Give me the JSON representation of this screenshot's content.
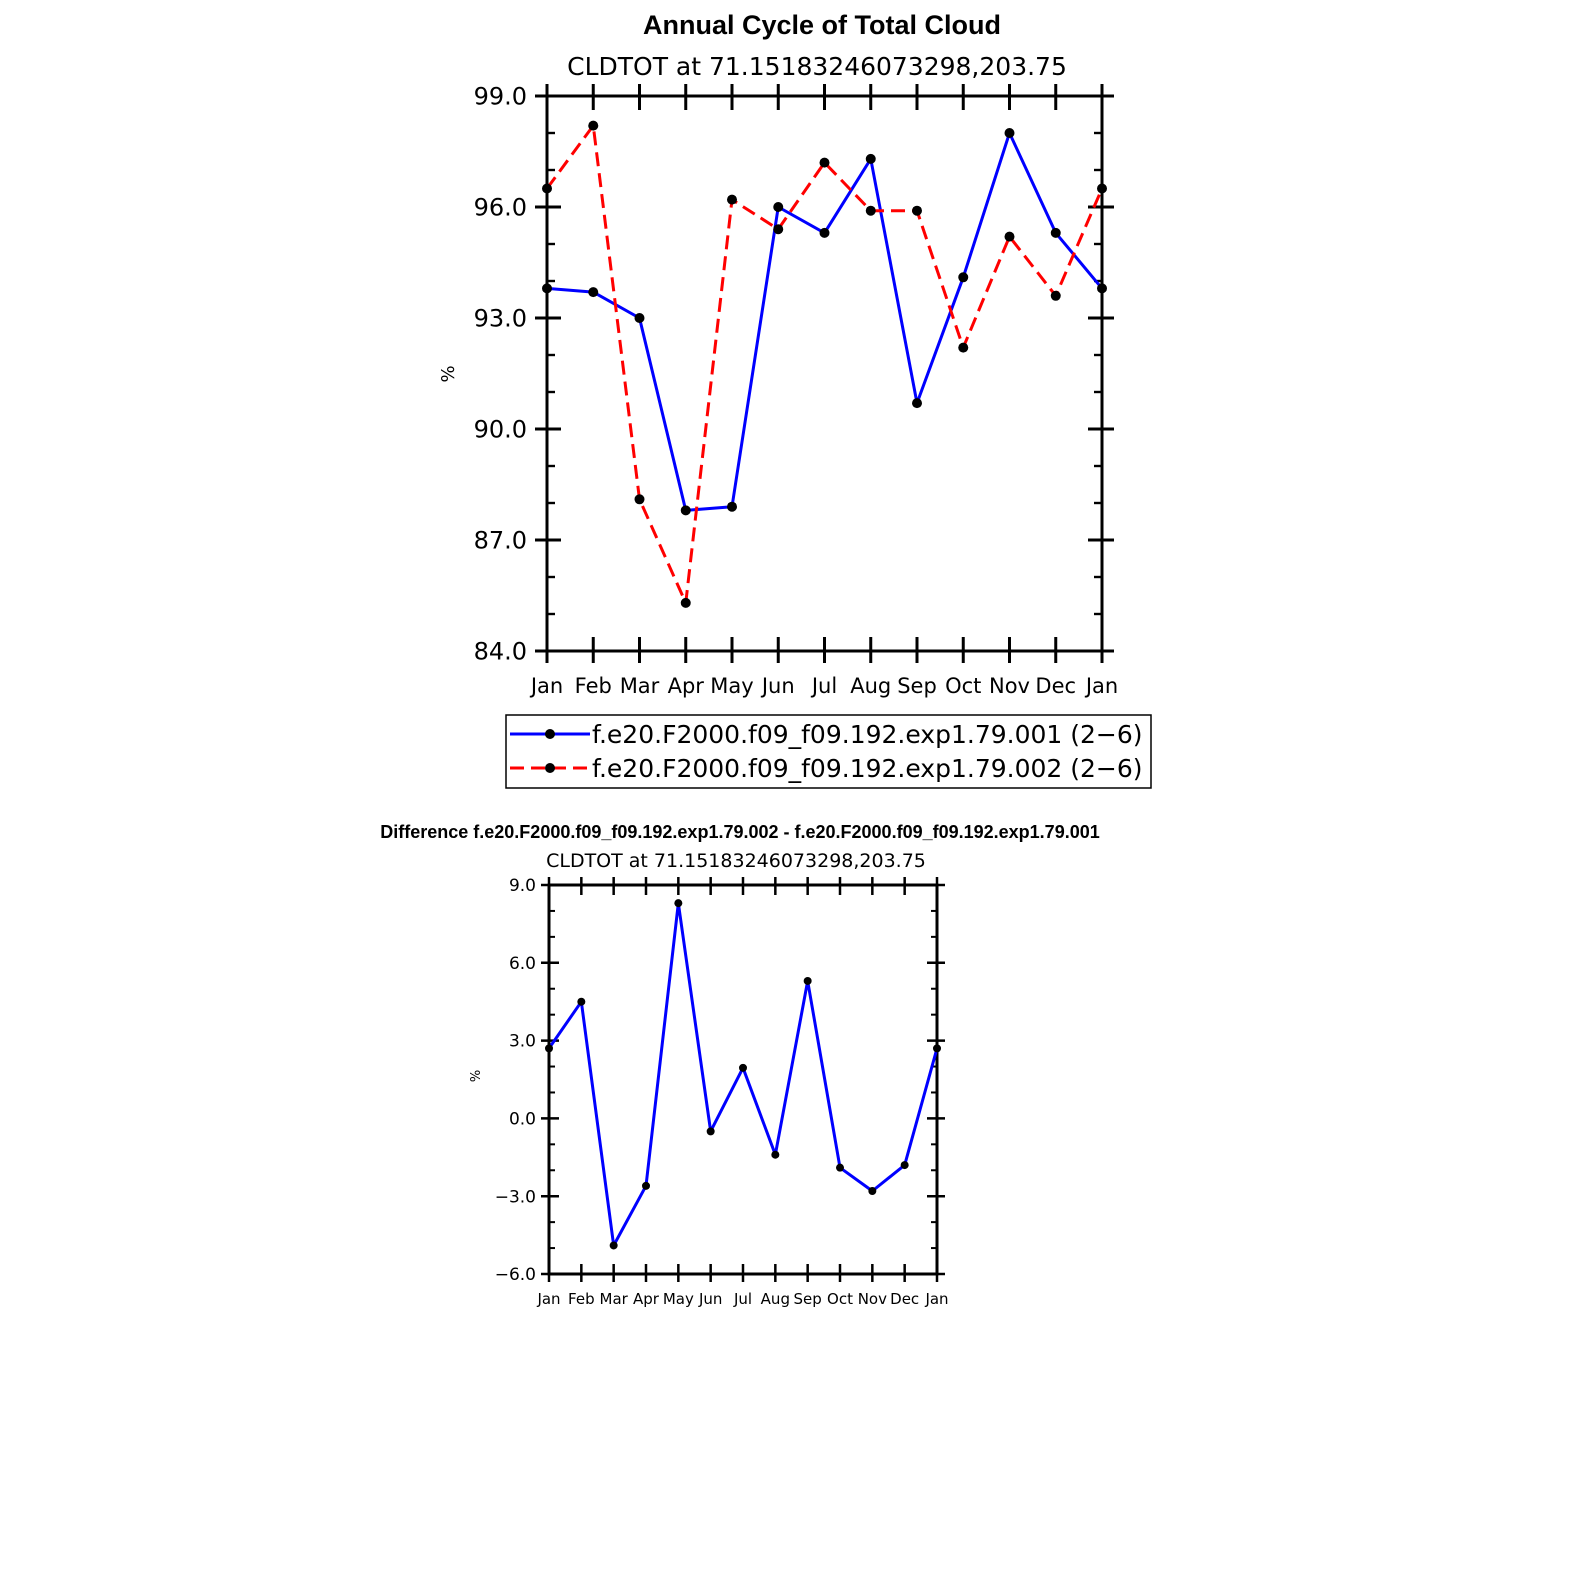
{
  "chart_data": [
    {
      "type": "line",
      "title": "Annual Cycle of Total Cloud",
      "subtitle": "CLDTOT at 71.15183246073298,203.75",
      "ylabel": "%",
      "xlabel": "",
      "categories": [
        "Jan",
        "Feb",
        "Mar",
        "Apr",
        "May",
        "Jun",
        "Jul",
        "Aug",
        "Sep",
        "Oct",
        "Nov",
        "Dec",
        "Jan"
      ],
      "ylim": [
        84.0,
        99.0
      ],
      "yticks": [
        "84.0",
        "87.0",
        "90.0",
        "93.0",
        "96.0",
        "99.0"
      ],
      "series": [
        {
          "name": "f.e20.F2000.f09_f09.192.exp1.79.001 (2−6)",
          "color": "#0000ff",
          "dash": "solid",
          "values": [
            93.8,
            93.7,
            93.0,
            87.8,
            87.9,
            96.0,
            95.3,
            97.3,
            90.7,
            94.1,
            98.0,
            95.3,
            93.8
          ]
        },
        {
          "name": "f.e20.F2000.f09_f09.192.exp1.79.002 (2−6)",
          "color": "#ff0000",
          "dash": "dashed",
          "values": [
            96.5,
            98.2,
            88.1,
            85.3,
            96.2,
            95.4,
            97.2,
            95.9,
            95.9,
            92.2,
            95.2,
            93.6,
            96.5
          ]
        }
      ],
      "legend_placement": "bottom"
    },
    {
      "type": "line",
      "title": "Difference f.e20.F2000.f09_f09.192.exp1.79.002 - f.e20.F2000.f09_f09.192.exp1.79.001",
      "subtitle": "CLDTOT at 71.15183246073298,203.75",
      "ylabel": "%",
      "xlabel": "",
      "categories": [
        "Jan",
        "Feb",
        "Mar",
        "Apr",
        "May",
        "Jun",
        "Jul",
        "Aug",
        "Sep",
        "Oct",
        "Nov",
        "Dec",
        "Jan"
      ],
      "ylim": [
        -6.0,
        9.0
      ],
      "yticks": [
        "−6.0",
        "−3.0",
        "0.0",
        "3.0",
        "6.0",
        "9.0"
      ],
      "series": [
        {
          "color": "#0000ff",
          "dash": "solid",
          "values": [
            2.7,
            4.5,
            -4.9,
            -2.6,
            8.3,
            -0.5,
            1.95,
            -1.4,
            5.3,
            -1.9,
            -2.8,
            -1.8,
            2.7
          ]
        }
      ]
    }
  ]
}
